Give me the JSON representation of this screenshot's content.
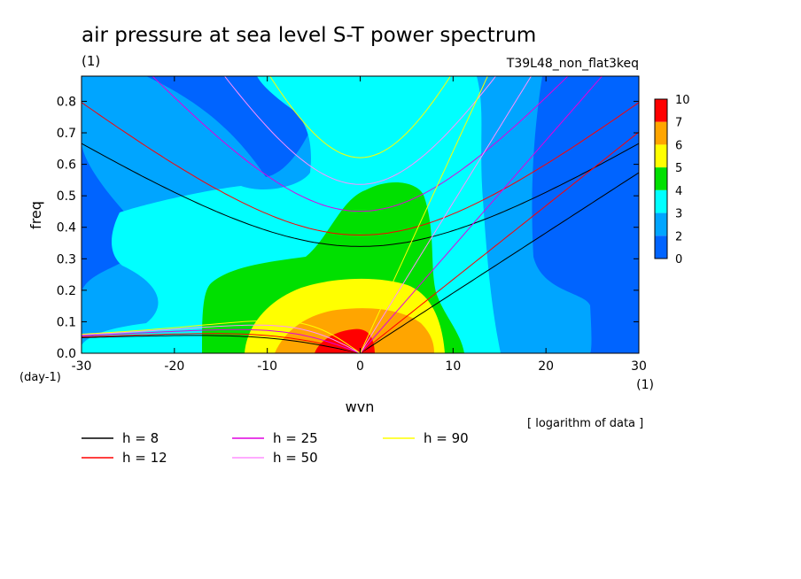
{
  "chart_data": {
    "type": "heatmap",
    "title": "air pressure at sea level S-T power spectrum",
    "title_unit": "(1)",
    "subtitle": "T39L48_non_flat3keq",
    "xlabel": "wvn",
    "xunit": "(1)",
    "ylabel": "freq",
    "yunit": "(day-1)",
    "xlim": [
      -30,
      30
    ],
    "ylim": [
      0,
      0.88
    ],
    "xticks": [
      -30,
      -20,
      -10,
      0,
      10,
      20,
      30
    ],
    "yticks": [
      0.0,
      0.1,
      0.2,
      0.3,
      0.4,
      0.5,
      0.6,
      0.7,
      0.8
    ],
    "note": "[ logarithm of data ]",
    "colorbar": {
      "labels": [
        "10",
        "7",
        "6",
        "5",
        "4",
        "3",
        "2",
        "0"
      ],
      "colors": [
        "#ff0000",
        "#ffa500",
        "#ffff00",
        "#00e000",
        "#00ffff",
        "#00a5ff",
        "#0064ff"
      ]
    },
    "contour_levels": [
      {
        "level": "0-2",
        "color": "#0064ff"
      },
      {
        "level": "2-3",
        "color": "#00a5ff"
      },
      {
        "level": "3-4",
        "color": "#00ffff"
      },
      {
        "level": "4-5",
        "color": "#00e000"
      },
      {
        "level": "5-6",
        "color": "#ffff00"
      },
      {
        "level": "6-7",
        "color": "#ffa500"
      },
      {
        "level": "7-10",
        "color": "#ff0000"
      }
    ],
    "dispersion_curves": [
      {
        "name": "h =  8",
        "color": "#000000",
        "h": 8
      },
      {
        "name": "h = 12",
        "color": "#ff0000",
        "h": 12
      },
      {
        "name": "h = 25",
        "color": "#e000e0",
        "h": 25
      },
      {
        "name": "h = 50",
        "color": "#ff90ff",
        "h": 50
      },
      {
        "name": "h = 90",
        "color": "#ffff00",
        "h": 90
      }
    ]
  }
}
